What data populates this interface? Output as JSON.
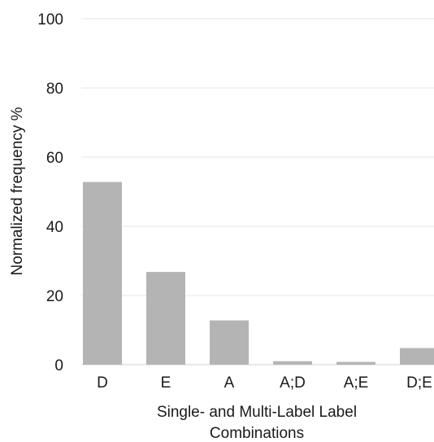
{
  "chart_data": {
    "type": "bar",
    "categories": [
      "D",
      "E",
      "A",
      "A;D",
      "A;E",
      "D;E"
    ],
    "values": [
      52.8,
      26.8,
      12.8,
      1.0,
      0.8,
      4.8
    ],
    "title": "",
    "xlabel_lines": [
      "Single- and Multi-Label Label",
      "Combinations"
    ],
    "ylabel": "Normalized frequency %",
    "ylim": [
      0,
      100
    ],
    "yticks": [
      0,
      20,
      40,
      60,
      80,
      100
    ],
    "grid": true,
    "colors": {
      "bar": "#b4b4b4",
      "grid": "#e6e6e6",
      "text": "#1a1a1a"
    }
  }
}
